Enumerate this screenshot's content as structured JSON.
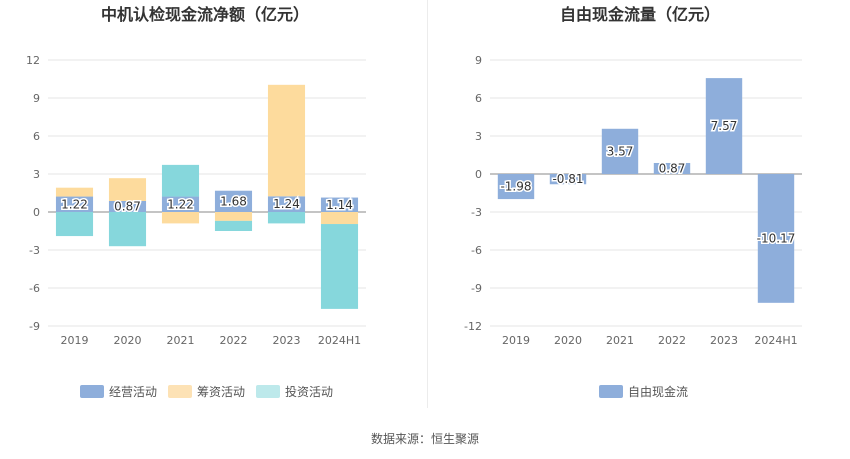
{
  "chart_data": [
    {
      "type": "bar",
      "stacked": true,
      "title": "中机认检现金流净额（亿元）",
      "categories": [
        "2019",
        "2020",
        "2021",
        "2022",
        "2023",
        "2024H1"
      ],
      "ylim": [
        -9,
        12
      ],
      "yticks": [
        12,
        9,
        6,
        3,
        0,
        -3,
        -6,
        -9
      ],
      "series": [
        {
          "name": "经营活动",
          "color": "#8eaedb",
          "values": [
            1.22,
            0.87,
            1.22,
            1.68,
            1.24,
            1.14
          ],
          "labels": [
            "1.22",
            "0.87",
            "1.22",
            "1.68",
            "1.24",
            "1.14"
          ]
        },
        {
          "name": "筹资活动",
          "color": "#fddb9d",
          "values": [
            0.7,
            1.8,
            -0.9,
            -0.7,
            8.8,
            -0.95
          ]
        },
        {
          "name": "投资活动",
          "color": "#86d7dc",
          "values": [
            -1.9,
            -2.7,
            2.5,
            -0.8,
            -0.9,
            -6.7
          ]
        }
      ],
      "legend": [
        "经营活动",
        "筹资活动",
        "投资活动"
      ],
      "legend_colors": [
        "#8eaedb",
        "#fde2b5",
        "#bde9eb"
      ]
    },
    {
      "type": "bar",
      "title": "自由现金流量（亿元）",
      "categories": [
        "2019",
        "2020",
        "2021",
        "2022",
        "2023",
        "2024H1"
      ],
      "ylim": [
        -12,
        9
      ],
      "yticks": [
        9,
        6,
        3,
        0,
        -3,
        -6,
        -9,
        -12
      ],
      "series": [
        {
          "name": "自由现金流",
          "color": "#8eaedb",
          "values": [
            -1.98,
            -0.81,
            3.57,
            0.87,
            7.57,
            -10.17
          ],
          "labels": [
            "-1.98",
            "-0.81",
            "3.57",
            "0.87",
            "7.57",
            "-10.17"
          ]
        }
      ],
      "legend": [
        "自由现金流"
      ],
      "legend_colors": [
        "#8eaedb"
      ]
    }
  ],
  "source": "数据来源：恒生聚源"
}
